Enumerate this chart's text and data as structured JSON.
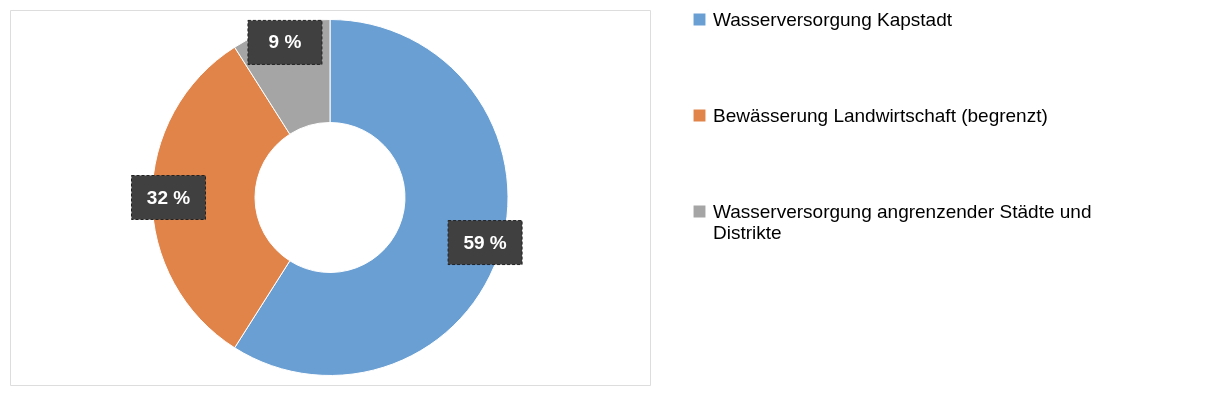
{
  "chart_data": {
    "type": "donut",
    "categories": [
      "Wasserversorgung Kapstadt",
      "Bewässerung Landwirtschaft (begrenzt)",
      "Wasserversorgung angrenzender Städte und Distrikte"
    ],
    "values": [
      59,
      32,
      9
    ],
    "colors": [
      "#6a9fd4",
      "#e0844a",
      "#a5a5a5"
    ],
    "value_labels": [
      "59 %",
      "32 %",
      "9 %"
    ],
    "legend": "right"
  }
}
